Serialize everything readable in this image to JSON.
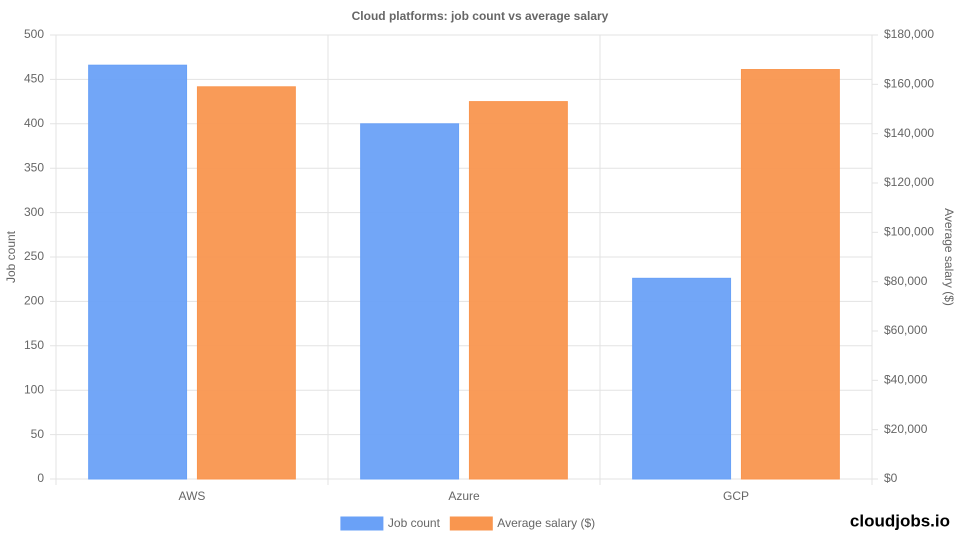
{
  "chart_data": {
    "type": "bar",
    "title": "Cloud platforms: job count vs average salary",
    "categories": [
      "AWS",
      "Azure",
      "GCP"
    ],
    "series": [
      {
        "name": "Job count",
        "color": "#6aa1f7",
        "values": [
          466,
          400,
          226
        ]
      },
      {
        "name": "Average salary ($)",
        "color": "#f9964f",
        "values": [
          159000,
          153000,
          166000
        ],
        "axis": "y2"
      }
    ],
    "y_label": "Job count",
    "y2_label": "Average salary ($)",
    "ylim": [
      0,
      500
    ],
    "yticks": [
      0,
      50,
      100,
      150,
      200,
      250,
      300,
      350,
      400,
      450,
      500
    ],
    "y2lim": [
      0,
      180000
    ],
    "y2ticks": [
      {
        "value": 0,
        "label": "$0"
      },
      {
        "value": 20000,
        "label": "$20,000"
      },
      {
        "value": 40000,
        "label": "$40,000"
      },
      {
        "value": 60000,
        "label": "$60,000"
      },
      {
        "value": 80000,
        "label": "$80,000"
      },
      {
        "value": 100000,
        "label": "$100,000"
      },
      {
        "value": 120000,
        "label": "$120,000"
      },
      {
        "value": 140000,
        "label": "$140,000"
      },
      {
        "value": 160000,
        "label": "$160,000"
      },
      {
        "value": 180000,
        "label": "$180,000"
      }
    ],
    "grid": true,
    "legend": "bottom",
    "watermark": "cloudjobs.io"
  }
}
